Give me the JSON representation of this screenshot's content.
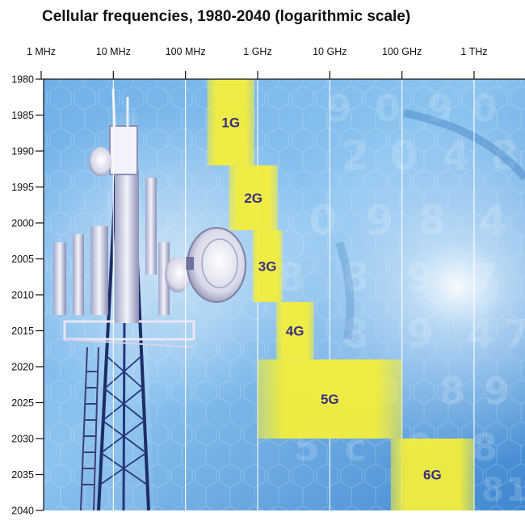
{
  "chart_data": {
    "type": "bar",
    "title": "Cellular frequencies, 1980-2040 (logarithmic scale)",
    "x_scale": "log",
    "x_unit": "Hz",
    "x_ticks": [
      {
        "label": "1 MHz",
        "value": 1000000
      },
      {
        "label": "10 MHz",
        "value": 10000000
      },
      {
        "label": "100 MHz",
        "value": 100000000
      },
      {
        "label": "1 GHz",
        "value": 1000000000
      },
      {
        "label": "10 GHz",
        "value": 10000000000
      },
      {
        "label": "100 GHz",
        "value": 100000000000
      },
      {
        "label": "1 THz",
        "value": 1000000000000
      }
    ],
    "y_ticks": [
      1980,
      1985,
      1990,
      1995,
      2000,
      2005,
      2010,
      2015,
      2020,
      2025,
      2030,
      2035,
      2040
    ],
    "ylim": [
      1980,
      2040
    ],
    "grid": "vertical",
    "bands": [
      {
        "label": "1G",
        "year_start": 1980,
        "year_end": 1992,
        "freq_low_hz": 200000000,
        "freq_high_hz": 900000000
      },
      {
        "label": "2G",
        "year_start": 1992,
        "year_end": 2001,
        "freq_low_hz": 400000000,
        "freq_high_hz": 1900000000
      },
      {
        "label": "3G",
        "year_start": 2001,
        "year_end": 2011,
        "freq_low_hz": 850000000,
        "freq_high_hz": 2200000000
      },
      {
        "label": "4G",
        "year_start": 2011,
        "year_end": 2019,
        "freq_low_hz": 1800000000,
        "freq_high_hz": 6000000000
      },
      {
        "label": "5G",
        "year_start": 2019,
        "year_end": 2030,
        "freq_low_hz": 1000000000,
        "freq_high_hz": 100000000000
      },
      {
        "label": "6G",
        "year_start": 2030,
        "year_end": 2040,
        "freq_low_hz": 70000000000,
        "freq_high_hz": 1000000000000
      }
    ]
  },
  "background": {
    "overlay_numerals": [
      "9",
      "0",
      "9",
      "0",
      "2",
      "0",
      "4",
      "8",
      "0",
      "9",
      "8",
      "4",
      "8",
      "8",
      "9",
      "7",
      "0",
      "8",
      "9",
      "4",
      "7",
      "0",
      "8",
      "9",
      "5",
      "c",
      "0",
      "8",
      "1",
      "8",
      "1"
    ]
  },
  "colors": {
    "band": "#f3ee3c",
    "band_label": "#3a2f86",
    "grid": "#ffffff",
    "sky_light": "#a9d6f4",
    "sky_dark": "#3d86cf"
  }
}
